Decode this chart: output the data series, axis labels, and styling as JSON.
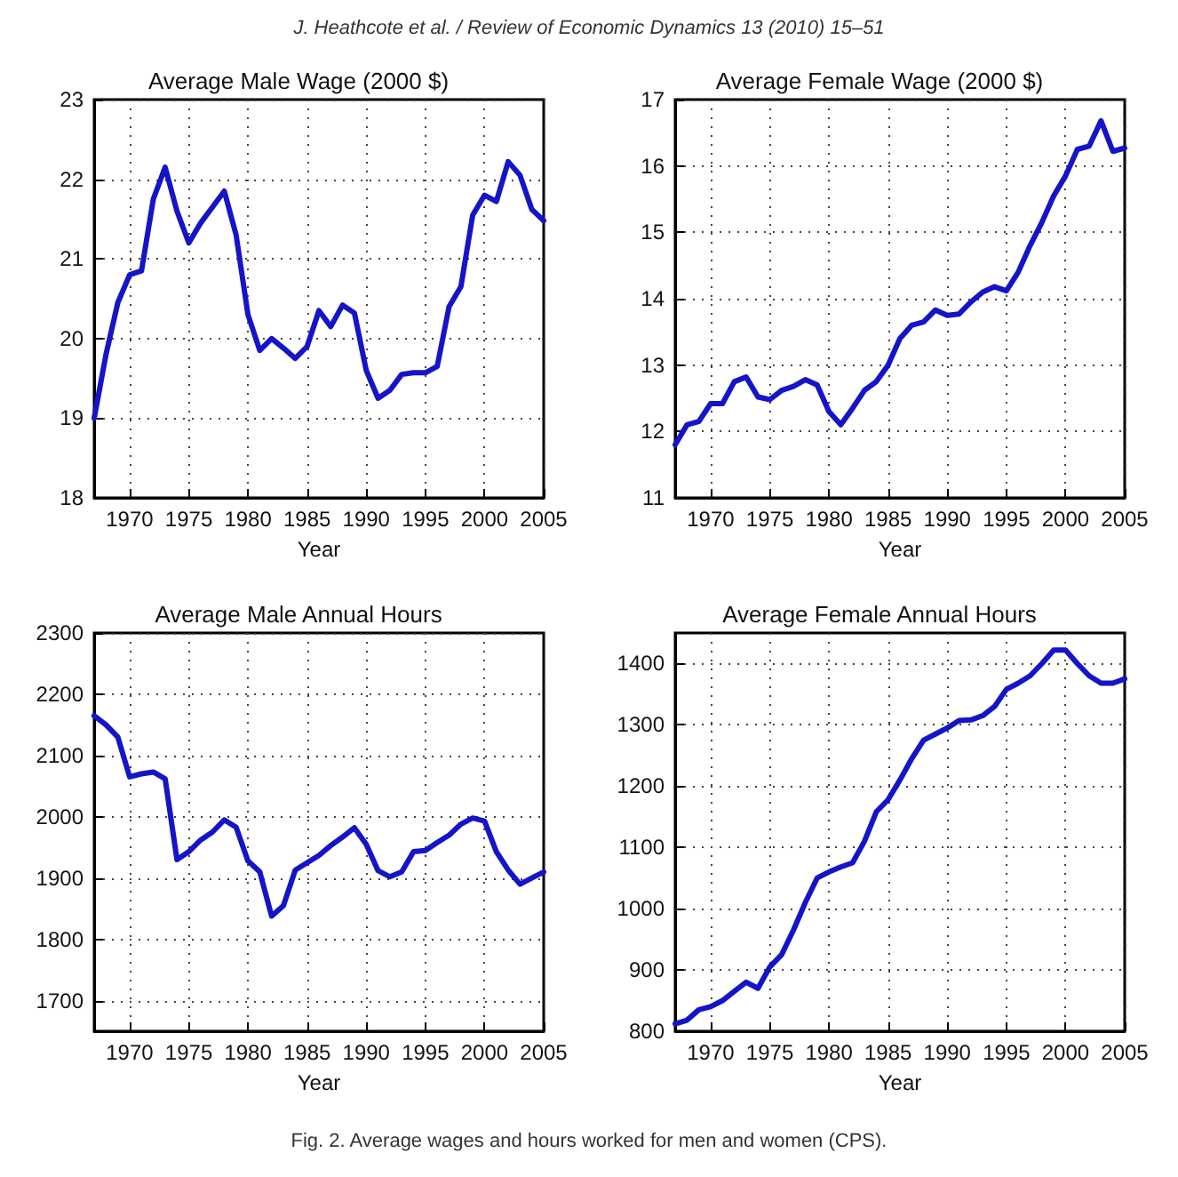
{
  "chart_data": [
    {
      "type": "line",
      "title": "Average Male Wage (2000 $)",
      "xlabel": "Year",
      "annotations": [
        "J. Heathcote et al. / Review of Economic Dynamics 13 (2010) 15–51"
      ],
      "grid": true,
      "line_style": "solid",
      "marker": "none",
      "xlim": [
        1967,
        2005
      ],
      "xticks": [
        1970,
        1975,
        1980,
        1985,
        1990,
        1995,
        2000,
        2005
      ],
      "ylim": [
        18,
        23
      ],
      "yticks": [
        18,
        19,
        20,
        21,
        22,
        23
      ],
      "x": [
        1967,
        1968,
        1969,
        1970,
        1971,
        1972,
        1973,
        1974,
        1975,
        1976,
        1977,
        1978,
        1979,
        1980,
        1981,
        1982,
        1983,
        1984,
        1985,
        1986,
        1987,
        1988,
        1989,
        1990,
        1991,
        1992,
        1993,
        1994,
        1995,
        1996,
        1997,
        1998,
        1999,
        2000,
        2001,
        2002,
        2003,
        2004,
        2005
      ],
      "series": [
        {
          "color": "#1414c8",
          "values": [
            19.0,
            19.8,
            20.45,
            20.8,
            20.85,
            21.75,
            22.15,
            21.6,
            21.2,
            21.45,
            21.65,
            21.85,
            21.3,
            20.3,
            19.85,
            20.0,
            19.88,
            19.75,
            19.9,
            20.35,
            20.15,
            20.42,
            20.32,
            19.6,
            19.25,
            19.35,
            19.55,
            19.57,
            19.57,
            19.65,
            20.4,
            20.65,
            21.55,
            21.8,
            21.72,
            22.22,
            22.05,
            21.62,
            21.48
          ]
        }
      ]
    },
    {
      "type": "line",
      "title": "Average Female Wage (2000 $)",
      "xlabel": "Year",
      "grid": true,
      "line_style": "solid",
      "marker": "none",
      "xlim": [
        1967,
        2005
      ],
      "xticks": [
        1970,
        1975,
        1980,
        1985,
        1990,
        1995,
        2000,
        2005
      ],
      "ylim": [
        11,
        17
      ],
      "yticks": [
        11,
        12,
        13,
        14,
        15,
        16,
        17
      ],
      "x": [
        1967,
        1968,
        1969,
        1970,
        1971,
        1972,
        1973,
        1974,
        1975,
        1976,
        1977,
        1978,
        1979,
        1980,
        1981,
        1982,
        1983,
        1984,
        1985,
        1986,
        1987,
        1988,
        1989,
        1990,
        1991,
        1992,
        1993,
        1994,
        1995,
        1996,
        1997,
        1998,
        1999,
        2000,
        2001,
        2002,
        2003,
        2004,
        2005
      ],
      "series": [
        {
          "color": "#1414c8",
          "values": [
            11.8,
            12.1,
            12.15,
            12.42,
            12.42,
            12.75,
            12.82,
            12.52,
            12.48,
            12.62,
            12.68,
            12.78,
            12.7,
            12.3,
            12.1,
            12.35,
            12.62,
            12.75,
            13.0,
            13.4,
            13.6,
            13.65,
            13.83,
            13.75,
            13.77,
            13.95,
            14.1,
            14.18,
            14.12,
            14.4,
            14.8,
            15.15,
            15.55,
            15.85,
            16.25,
            16.3,
            16.68,
            16.22,
            16.27
          ]
        }
      ]
    },
    {
      "type": "line",
      "title": "Average Male Annual Hours",
      "xlabel": "Year",
      "grid": true,
      "line_style": "solid",
      "marker": "none",
      "xlim": [
        1967,
        2005
      ],
      "xticks": [
        1970,
        1975,
        1980,
        1985,
        1990,
        1995,
        2000,
        2005
      ],
      "ylim": [
        1650,
        2300
      ],
      "yticks": [
        1700,
        1800,
        1900,
        2000,
        2100,
        2200,
        2300
      ],
      "x": [
        1967,
        1968,
        1969,
        1970,
        1971,
        1972,
        1973,
        1974,
        1975,
        1976,
        1977,
        1978,
        1979,
        1980,
        1981,
        1982,
        1983,
        1984,
        1985,
        1986,
        1987,
        1988,
        1989,
        1990,
        1991,
        1992,
        1993,
        1994,
        1995,
        1996,
        1997,
        1998,
        1999,
        2000,
        2001,
        2002,
        2003,
        2004,
        2005
      ],
      "series": [
        {
          "color": "#1414c8",
          "values": [
            2165,
            2150,
            2130,
            2065,
            2070,
            2073,
            2062,
            1930,
            1943,
            1962,
            1975,
            1995,
            1983,
            1928,
            1910,
            1838,
            1855,
            1913,
            1925,
            1937,
            1953,
            1967,
            1982,
            1955,
            1912,
            1902,
            1910,
            1943,
            1945,
            1958,
            1970,
            1988,
            1998,
            1993,
            1943,
            1913,
            1890,
            1900,
            1910
          ]
        }
      ]
    },
    {
      "type": "line",
      "title": "Average Female Annual Hours",
      "xlabel": "Year",
      "annotations": [
        "Fig. 2. Average wages and hours worked for men and women (CPS)."
      ],
      "grid": true,
      "line_style": "solid",
      "marker": "none",
      "xlim": [
        1967,
        2005
      ],
      "xticks": [
        1970,
        1975,
        1980,
        1985,
        1990,
        1995,
        2000,
        2005
      ],
      "ylim": [
        800,
        1450
      ],
      "yticks": [
        800,
        900,
        1000,
        1100,
        1200,
        1300,
        1400
      ],
      "x": [
        1967,
        1968,
        1969,
        1970,
        1971,
        1972,
        1973,
        1974,
        1975,
        1976,
        1977,
        1978,
        1979,
        1980,
        1981,
        1982,
        1983,
        1984,
        1985,
        1986,
        1987,
        1988,
        1989,
        1990,
        1991,
        1992,
        1993,
        1994,
        1995,
        1996,
        1997,
        1998,
        1999,
        2000,
        2001,
        2002,
        2003,
        2004,
        2005
      ],
      "series": [
        {
          "color": "#1414c8",
          "values": [
            812,
            818,
            835,
            840,
            850,
            865,
            880,
            870,
            905,
            925,
            965,
            1010,
            1050,
            1060,
            1068,
            1075,
            1110,
            1158,
            1178,
            1210,
            1245,
            1275,
            1285,
            1295,
            1307,
            1308,
            1315,
            1330,
            1358,
            1368,
            1380,
            1400,
            1422,
            1422,
            1400,
            1380,
            1368,
            1368,
            1375
          ]
        }
      ]
    }
  ]
}
